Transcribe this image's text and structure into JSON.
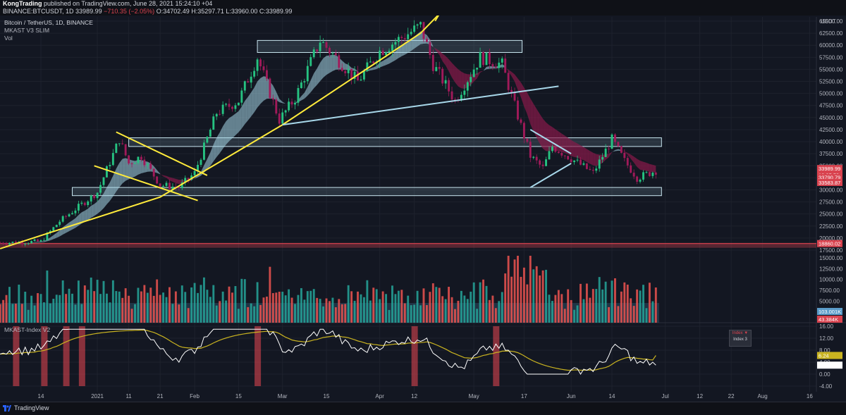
{
  "header": {
    "publisher": "KongTrading",
    "published_text": "published on TradingView.com, June 28, 2021 15:24:10 +04",
    "symbol_line": "BINANCE:BTCUSDT, 1D",
    "price": "33989.99",
    "change": "−710.35 (−2.05%)",
    "ohlc": {
      "o": "O:34702.49",
      "h": "H:35297.71",
      "l": "L:33960.00",
      "c": "C:33989.99"
    }
  },
  "legend": {
    "title": "Bitcoin / TetherUS, 1D, BINANCE",
    "indicator": "MKAST V3 SLIM",
    "volume": "Vol"
  },
  "oscillator": {
    "title": "MKAST-Index V2",
    "index_box_line1": "Index ▼",
    "index_box_line2": "Index 3"
  },
  "footer": {
    "brand": "TradingView"
  },
  "axis": {
    "currency": "USDT",
    "price_ticks": [
      "65000.00",
      "62500.00",
      "60000.00",
      "57500.00",
      "55000.00",
      "52500.00",
      "50000.00",
      "47500.00",
      "45000.00",
      "42500.00",
      "40000.00",
      "37500.00",
      "35000.00",
      "32500.00",
      "30000.00",
      "27500.00",
      "25000.00",
      "22500.00",
      "20000.00",
      "17500.00",
      "15000.00",
      "12500.00",
      "10000.00",
      "7500.00",
      "5000.00"
    ],
    "osc_ticks": [
      "16.00",
      "12.00",
      "8.00",
      "4.00",
      "0.00",
      "-4.00"
    ],
    "date_ticks": [
      "14",
      "2021",
      "11",
      "21",
      "Feb",
      "15",
      "Mar",
      "15",
      "Apr",
      "12",
      "May",
      "17",
      "Jun",
      "14",
      "Jul",
      "12",
      "22",
      "Aug",
      "16"
    ]
  },
  "price_tags": [
    {
      "label": "33989.99",
      "color": "#d9434f"
    },
    {
      "label": "12:35:52",
      "color": "#d9434f"
    },
    {
      "label": "33790.79",
      "color": "#d9434f"
    },
    {
      "label": "33583.87",
      "color": "#d9434f"
    },
    {
      "label": "18860.02",
      "color": "#d9434f"
    },
    {
      "label": "103.001K",
      "color": "#5b9cc9"
    },
    {
      "label": "43.384K",
      "color": "#d9434f"
    },
    {
      "label": "6.24",
      "color": "#c9b320"
    },
    {
      "label": "3.00",
      "color": "#ffffff"
    }
  ],
  "chart_data": {
    "type": "candlestick",
    "title": "Bitcoin / TetherUS, 1D, BINANCE",
    "x_range": [
      "2020-12-01",
      "2021-08-16"
    ],
    "price_range": [
      17500,
      65000
    ],
    "grid": true,
    "colors": {
      "up": "#26c281",
      "down": "#a11a5a",
      "ribbon_up": "#a8d8ea",
      "ribbon_down": "#8a1a4a",
      "trendline": "#ffeb3b",
      "zones": "#a8d8ea",
      "volume_up": "#26a69a",
      "volume_down": "#ef5350"
    },
    "price_path": [
      {
        "date": "2020-12-01",
        "close": 19000
      },
      {
        "date": "2020-12-14",
        "close": 19300
      },
      {
        "date": "2020-12-20",
        "close": 23500
      },
      {
        "date": "2020-12-26",
        "close": 26500
      },
      {
        "date": "2021-01-01",
        "close": 29500
      },
      {
        "date": "2021-01-08",
        "close": 40500
      },
      {
        "date": "2021-01-11",
        "close": 35500
      },
      {
        "date": "2021-01-15",
        "close": 37000
      },
      {
        "date": "2021-01-21",
        "close": 31000
      },
      {
        "date": "2021-01-27",
        "close": 30500
      },
      {
        "date": "2021-02-01",
        "close": 33500
      },
      {
        "date": "2021-02-08",
        "close": 46000
      },
      {
        "date": "2021-02-15",
        "close": 48500
      },
      {
        "date": "2021-02-21",
        "close": 57500
      },
      {
        "date": "2021-02-28",
        "close": 44500
      },
      {
        "date": "2021-03-05",
        "close": 49000
      },
      {
        "date": "2021-03-13",
        "close": 61000
      },
      {
        "date": "2021-03-25",
        "close": 52500
      },
      {
        "date": "2021-04-01",
        "close": 58800
      },
      {
        "date": "2021-04-14",
        "close": 64000
      },
      {
        "date": "2021-04-18",
        "close": 56000
      },
      {
        "date": "2021-04-25",
        "close": 48500
      },
      {
        "date": "2021-05-03",
        "close": 57500
      },
      {
        "date": "2021-05-10",
        "close": 56000
      },
      {
        "date": "2021-05-13",
        "close": 49500
      },
      {
        "date": "2021-05-19",
        "close": 37000
      },
      {
        "date": "2021-05-23",
        "close": 34500
      },
      {
        "date": "2021-05-26",
        "close": 39000
      },
      {
        "date": "2021-06-01",
        "close": 36500
      },
      {
        "date": "2021-06-08",
        "close": 33500
      },
      {
        "date": "2021-06-14",
        "close": 40500
      },
      {
        "date": "2021-06-18",
        "close": 36000
      },
      {
        "date": "2021-06-22",
        "close": 32500
      },
      {
        "date": "2021-06-28",
        "close": 33990
      }
    ],
    "zones": [
      {
        "name": "top",
        "from_date": "2021-02-21",
        "to_date": "2021-05-13",
        "low": 58500,
        "high": 61000
      },
      {
        "name": "mid",
        "from_date": "2021-01-11",
        "to_date": "2021-06-28",
        "low": 39000,
        "high": 40800
      },
      {
        "name": "support",
        "from_date": "2020-12-24",
        "to_date": "2021-06-28",
        "low": 28800,
        "high": 30500
      }
    ],
    "horizontal_line": {
      "value": 18860.02,
      "color": "#d9434f"
    },
    "trendlines": [
      {
        "color": "#ffeb3b",
        "points": [
          [
            "2020-12-01",
            17800
          ],
          [
            "2021-01-21",
            28500
          ],
          [
            "2021-03-01",
            43500
          ],
          [
            "2021-04-14",
            62500
          ],
          [
            "2021-04-20",
            66500
          ]
        ]
      },
      {
        "color": "#ffeb3b",
        "points": [
          [
            "2021-01-07",
            42000
          ],
          [
            "2021-02-05",
            33000
          ]
        ]
      },
      {
        "color": "#ffeb3b",
        "points": [
          [
            "2020-12-31",
            35000
          ],
          [
            "2021-02-02",
            27800
          ]
        ]
      },
      {
        "color": "#a8d8ea",
        "points": [
          [
            "2021-03-01",
            43500
          ],
          [
            "2021-05-28",
            51500
          ]
        ]
      },
      {
        "color": "#a8d8ea",
        "points": [
          [
            "2021-05-19",
            42500
          ],
          [
            "2021-06-01",
            37500
          ]
        ]
      },
      {
        "color": "#a8d8ea",
        "points": [
          [
            "2021-05-19",
            30500
          ],
          [
            "2021-06-01",
            35500
          ]
        ]
      }
    ],
    "volume_level": 103001,
    "oscillator": {
      "range": [
        -4,
        16
      ],
      "last_value": 3.0,
      "signal_value": 6.24,
      "signal_bars_dates": [
        "2020-12-06",
        "2020-12-15",
        "2020-12-22",
        "2020-12-27",
        "2021-02-21",
        "2021-04-12",
        "2021-05-08"
      ]
    }
  }
}
